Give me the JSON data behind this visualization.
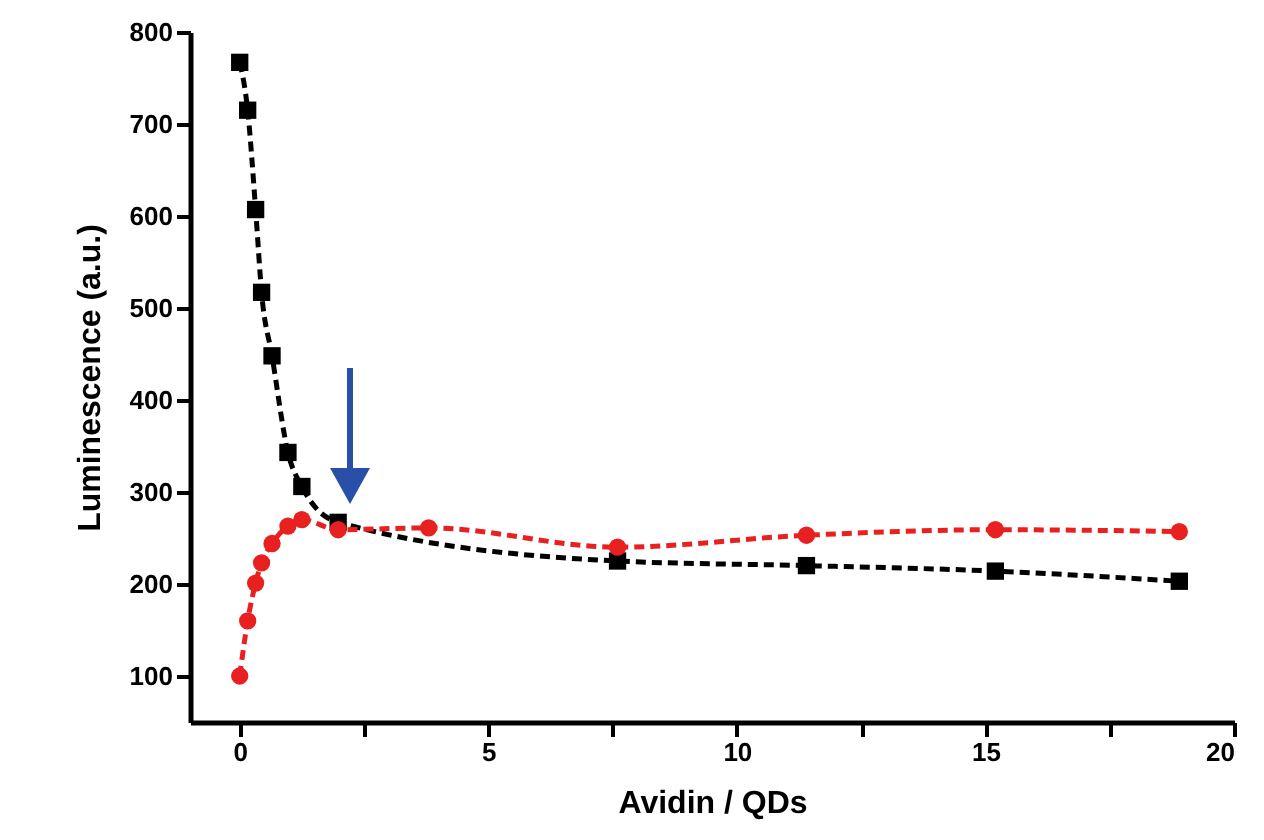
{
  "chart_data": {
    "type": "line",
    "xlabel": "Avidin / QDs",
    "ylabel": "Luminescence (a.u.)",
    "xlim": [
      -1,
      20
    ],
    "xticks": [
      0,
      {
        "value": 2.5,
        "label": null
      },
      5,
      {
        "value": 7.5,
        "label": null
      },
      10,
      {
        "value": 12.5,
        "label": null
      },
      15,
      {
        "value": 17.5,
        "label": null
      },
      20
    ],
    "ylim": [
      50,
      800
    ],
    "yticks": [
      100,
      200,
      300,
      400,
      500,
      600,
      700,
      800
    ],
    "grid": false,
    "line_style": "dashed",
    "series": [
      {
        "color": "#000000",
        "marker": "square",
        "x": [
          0,
          0.16,
          0.32,
          0.44,
          0.65,
          0.97,
          1.25,
          1.98,
          7.6,
          11.4,
          15.2,
          18.9
        ],
        "values": [
          767,
          715,
          607,
          517,
          448,
          343,
          306,
          267,
          225,
          220,
          214,
          203
        ]
      },
      {
        "color": "#e82020",
        "marker": "circle",
        "x": [
          0,
          0.16,
          0.32,
          0.44,
          0.65,
          0.97,
          1.25,
          1.98,
          3.8,
          7.6,
          11.4,
          15.2,
          18.9
        ],
        "values": [
          100,
          160,
          201,
          223,
          244,
          263,
          270,
          259,
          261,
          240,
          253,
          259,
          257
        ]
      }
    ]
  }
}
